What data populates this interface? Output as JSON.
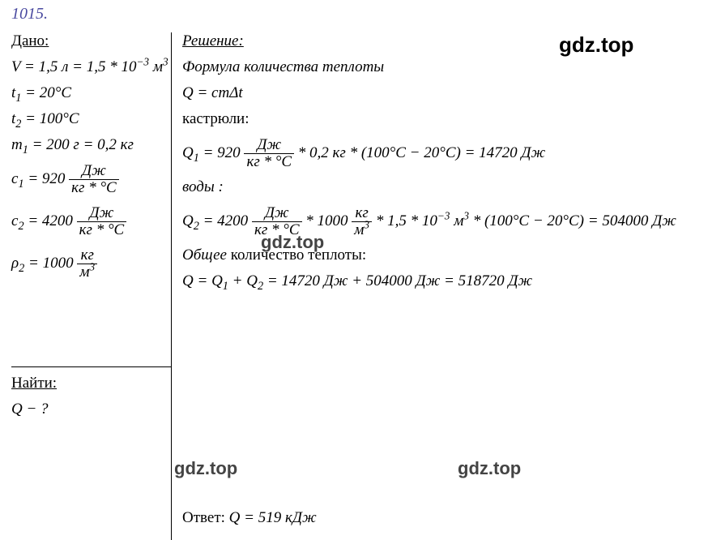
{
  "problem_number": "1015.",
  "watermark": "gdz.top",
  "colors": {
    "text": "#000000",
    "number": "#4a4aa0",
    "bg": "#ffffff",
    "wm_dark": "#000000",
    "wm_gray": "#444444"
  },
  "given": {
    "title": "Дано:",
    "lines": {
      "V_lhs": "V",
      "V_eq": " = 1,5 л = 1,5 * 10",
      "V_exp": "−3",
      "V_unit_base": " м",
      "V_unit_exp": "3",
      "t1_lhs": "t",
      "t1_sub": "1",
      "t1_rhs": " = 20°C",
      "t2_lhs": "t",
      "t2_sub": "2",
      "t2_rhs": " = 100°C",
      "m1_lhs": "m",
      "m1_sub": "1",
      "m1_rhs": " = 200 г = 0,2 кг",
      "c1_lhs": "c",
      "c1_sub": "1",
      "c1_val": " = 920 ",
      "c_num": "Дж",
      "c_den": "кг * °C",
      "c2_lhs": "c",
      "c2_sub": "2",
      "c2_val": " = 4200 ",
      "rho_lhs": "ρ",
      "rho_sub": "2",
      "rho_val": " = 1000 ",
      "rho_num": "кг",
      "rho_den_base": "м",
      "rho_den_exp": "3"
    }
  },
  "find": {
    "title": "Найти:",
    "q_lhs": "Q",
    "q_rhs": " − ?"
  },
  "solution": {
    "title": "Решение:",
    "intro": "Формула количества теплоты",
    "formula_lhs": "Q",
    "formula_rhs": " = cmΔt",
    "section_pot": "кастрюли:",
    "q1_lhs": "Q",
    "q1_sub": "1",
    "q1_pre": " = 920 ",
    "q1_mid": " * 0,2 кг * (100°C − 20°C) = 14720 Дж",
    "section_water": "воды :",
    "q2_lhs": "Q",
    "q2_sub": "2",
    "q2_pre": " = 4200 ",
    "q2_mid1": " * 1000 ",
    "q2_rho_num": "кг",
    "q2_rho_den_base": "м",
    "q2_rho_den_exp": "3",
    "q2_mid2": " * 1,5 * 10",
    "q2_exp": "−3",
    "q2_unit_base": " м",
    "q2_unit_exp": "3",
    "q2_tail": " * (100°C − 20°C) = 504000 Дж",
    "section_total_em": "Общее",
    "section_total_rest": " количество теплоты:",
    "qtot_lhs": "Q",
    "qtot_eq": " = ",
    "qtot_q1": "Q",
    "qtot_q1sub": "1",
    "qtot_plus": " + ",
    "qtot_q2": "Q",
    "qtot_q2sub": "2",
    "qtot_rhs": " = 14720 Дж + 504000 Дж = 518720 Дж"
  },
  "answer": {
    "label": "Ответ: ",
    "q": "Q",
    "rhs": " = 519 кДж"
  }
}
